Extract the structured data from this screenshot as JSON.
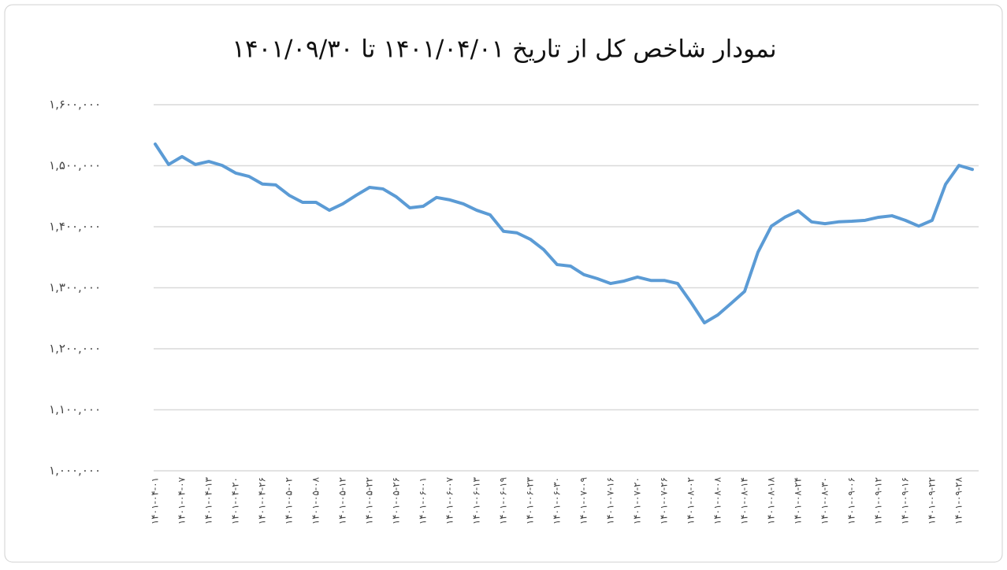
{
  "chart_data": {
    "type": "line",
    "title": "نمودار شاخص کل از تاریخ ۱۴۰۱/۰۴/۰۱ تا ۱۴۰۱/۰۹/۳۰",
    "categories": [
      "۱۴۰۱-۰۴-۰۱",
      null,
      "۱۴۰۱-۰۴-۰۷",
      null,
      "۱۴۰۱-۰۴-۱۳",
      null,
      "۱۴۰۱-۰۴-۲۰",
      null,
      "۱۴۰۱-۰۴-۲۶",
      null,
      "۱۴۰۱-۰۵-۰۲",
      null,
      "۱۴۰۱-۰۵-۰۸",
      null,
      "۱۴۰۱-۰۵-۱۲",
      null,
      "۱۴۰۱-۰۵-۲۲",
      null,
      "۱۴۰۱-۰۵-۲۶",
      null,
      "۱۴۰۱-۰۶-۰۱",
      null,
      "۱۴۰۱-۰۶-۰۷",
      null,
      "۱۴۰۱-۰۶-۱۳",
      null,
      "۱۴۰۱-۰۶-۱۹",
      null,
      "۱۴۰۱-۰۶-۲۳",
      null,
      "۱۴۰۱-۰۶-۳۰",
      null,
      "۱۴۰۱-۰۷-۰۹",
      null,
      "۱۴۰۱-۰۷-۱۶",
      null,
      "۱۴۰۱-۰۷-۲۰",
      null,
      "۱۴۰۱-۰۷-۲۶",
      null,
      "۱۴۰۱-۰۸-۰۲",
      null,
      "۱۴۰۱-۰۸-۰۸",
      null,
      "۱۴۰۱-۰۸-۱۴",
      null,
      "۱۴۰۱-۰۸-۱۸",
      null,
      "۱۴۰۱-۰۸-۲۴",
      null,
      "۱۴۰۱-۰۸-۳۰",
      null,
      "۱۴۰۱-۰۹-۰۶",
      null,
      "۱۴۰۱-۰۹-۱۲",
      null,
      "۱۴۰۱-۰۹-۱۶",
      null,
      "۱۴۰۱-۰۹-۲۲",
      null,
      "۱۴۰۱-۰۹-۲۸",
      null
    ],
    "values": [
      1535500,
      1502000,
      1515000,
      1502000,
      1507000,
      1500500,
      1488000,
      1482500,
      1470000,
      1468500,
      1451500,
      1440000,
      1440000,
      1427000,
      1437500,
      1451500,
      1464500,
      1462000,
      1449000,
      1431000,
      1433500,
      1448000,
      1444000,
      1437500,
      1427000,
      1419500,
      1392500,
      1390000,
      1379500,
      1362500,
      1338000,
      1335500,
      1321500,
      1315000,
      1307000,
      1311000,
      1317500,
      1312000,
      1312000,
      1307000,
      1276000,
      1242500,
      1255500,
      1274500,
      1294000,
      1358500,
      1401000,
      1415500,
      1426000,
      1408000,
      1405000,
      1408000,
      1409000,
      1410500,
      1415500,
      1418000,
      1410500,
      1401000,
      1410500,
      1469500,
      1500500,
      1494000
    ],
    "color": "#5b9bd5",
    "ylim": [
      1000000,
      1600000
    ],
    "yticks": [
      {
        "value": 1000000,
        "label": "۱,۰۰۰,۰۰۰"
      },
      {
        "value": 1100000,
        "label": "۱,۱۰۰,۰۰۰"
      },
      {
        "value": 1200000,
        "label": "۱,۲۰۰,۰۰۰"
      },
      {
        "value": 1300000,
        "label": "۱,۳۰۰,۰۰۰"
      },
      {
        "value": 1400000,
        "label": "۱,۴۰۰,۰۰۰"
      },
      {
        "value": 1500000,
        "label": "۱,۵۰۰,۰۰۰"
      },
      {
        "value": 1600000,
        "label": "۱,۶۰۰,۰۰۰"
      }
    ],
    "grid": true
  }
}
